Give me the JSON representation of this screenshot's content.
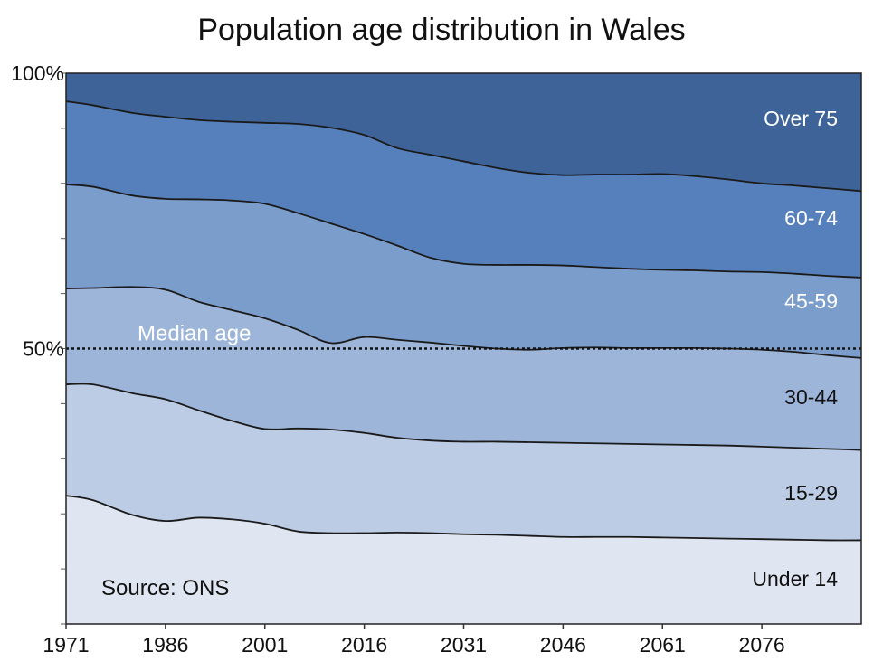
{
  "chart_data": {
    "type": "area",
    "stacked": true,
    "normalized": true,
    "title": "Population age distribution in Wales",
    "xlabel": "",
    "ylabel": "",
    "source_note": "Source: ONS",
    "median_label": "Median age",
    "median_value": 50,
    "xlim": [
      1971,
      2091
    ],
    "ylim": [
      0,
      100
    ],
    "x_ticks": [
      1971,
      1986,
      2001,
      2016,
      2031,
      2046,
      2061,
      2076
    ],
    "y_tick_labels": [
      {
        "value": 100,
        "label": "100%"
      },
      {
        "value": 50,
        "label": "50%"
      }
    ],
    "x": [
      1971,
      1975,
      1981,
      1986,
      1991,
      1996,
      2001,
      2006,
      2011,
      2016,
      2021,
      2026,
      2031,
      2036,
      2041,
      2046,
      2051,
      2056,
      2061,
      2066,
      2071,
      2076,
      2081,
      2086,
      2091
    ],
    "boundaries": [
      {
        "name": "Under 14",
        "upper": [
          23.3,
          22.5,
          19.8,
          18.7,
          19.3,
          19.0,
          18.2,
          16.8,
          16.5,
          16.5,
          16.6,
          16.5,
          16.3,
          16.2,
          16.0,
          15.8,
          15.8,
          15.8,
          15.7,
          15.6,
          15.5,
          15.4,
          15.3,
          15.2,
          15.2
        ]
      },
      {
        "name": "15-29",
        "upper": [
          43.5,
          43.5,
          41.9,
          40.8,
          38.8,
          36.9,
          35.4,
          35.5,
          35.3,
          34.7,
          33.8,
          33.3,
          33.1,
          33.1,
          33.0,
          32.9,
          32.8,
          32.7,
          32.6,
          32.5,
          32.4,
          32.2,
          32.0,
          31.8,
          31.6
        ]
      },
      {
        "name": "30-44",
        "upper": [
          60.9,
          61.0,
          61.2,
          60.7,
          58.5,
          57.0,
          55.5,
          53.4,
          51.0,
          52.1,
          51.6,
          51.1,
          50.5,
          50.0,
          49.8,
          50.1,
          50.2,
          50.1,
          50.1,
          50.1,
          50.0,
          49.8,
          49.4,
          48.8,
          48.3
        ]
      },
      {
        "name": "45-59",
        "upper": [
          79.8,
          79.4,
          77.8,
          77.2,
          77.1,
          76.9,
          76.3,
          74.6,
          72.7,
          70.8,
          68.7,
          66.5,
          65.4,
          65.2,
          65.2,
          65.1,
          64.8,
          64.5,
          64.3,
          64.2,
          64.0,
          63.9,
          63.6,
          63.2,
          62.9
        ]
      },
      {
        "name": "60-74",
        "upper": [
          94.9,
          94.2,
          92.8,
          92.1,
          91.5,
          91.2,
          91.0,
          90.8,
          90.1,
          88.8,
          86.4,
          85.2,
          84.0,
          82.8,
          81.9,
          81.5,
          81.6,
          81.6,
          81.7,
          81.3,
          80.7,
          80.0,
          79.6,
          79.1,
          78.6
        ]
      },
      {
        "name": "Over 75",
        "upper": [
          100,
          100,
          100,
          100,
          100,
          100,
          100,
          100,
          100,
          100,
          100,
          100,
          100,
          100,
          100,
          100,
          100,
          100,
          100,
          100,
          100,
          100,
          100,
          100,
          100
        ]
      }
    ],
    "series": [
      {
        "name": "Under 14",
        "color": "#dfe6f2",
        "label_color": "#111111"
      },
      {
        "name": "15-29",
        "color": "#bccce4",
        "label_color": "#111111"
      },
      {
        "name": "30-44",
        "color": "#9db5d9",
        "label_color": "#111111"
      },
      {
        "name": "45-59",
        "color": "#7b9dcb",
        "label_color": "#ffffff"
      },
      {
        "name": "60-74",
        "color": "#5680bb",
        "label_color": "#ffffff"
      },
      {
        "name": "Over 75",
        "color": "#3d6398",
        "label_color": "#ffffff"
      }
    ],
    "grid": false,
    "legend": "inline labels at right"
  }
}
